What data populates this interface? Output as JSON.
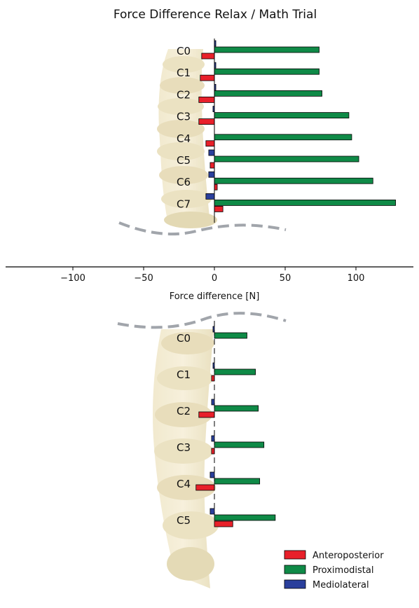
{
  "chart_data": {
    "type": "bar",
    "orientation": "horizontal",
    "title": "Force Difference Relax / Math Trial",
    "xlabel": "Force difference [N]",
    "xticks": [
      -100,
      -50,
      0,
      50,
      100
    ],
    "xlim": [
      -150,
      140
    ],
    "legend": {
      "placement": "bottom-right",
      "entries": [
        "Anteroposterior",
        "Proximodistal",
        "Mediolateral"
      ]
    },
    "colors": {
      "Anteroposterior": "#e8202a",
      "Proximodistal": "#0f8a47",
      "Mediolateral": "#2a3f9c"
    },
    "panels": [
      {
        "name": "upper",
        "categories": [
          "C0",
          "C1",
          "C2",
          "C3",
          "C4",
          "C5",
          "C6",
          "C7"
        ],
        "series": [
          {
            "name": "Anteroposterior",
            "values": [
              -9,
              -10,
              -11,
              -11,
              -6,
              -3,
              2,
              6
            ]
          },
          {
            "name": "Proximodistal",
            "values": [
              74,
              74,
              76,
              95,
              97,
              102,
              112,
              128
            ]
          },
          {
            "name": "Mediolateral",
            "values": [
              1,
              1,
              1,
              -1,
              0,
              -4,
              -4,
              -6
            ]
          }
        ]
      },
      {
        "name": "lower",
        "categories": [
          "C0",
          "C1",
          "C2",
          "C3",
          "C4",
          "C5"
        ],
        "series": [
          {
            "name": "Anteroposterior",
            "values": [
              0,
              -2,
              -11,
              -2,
              -13,
              13
            ]
          },
          {
            "name": "Proximodistal",
            "values": [
              23,
              29,
              31,
              35,
              32,
              43
            ]
          },
          {
            "name": "Mediolateral",
            "values": [
              -1,
              -1,
              -2,
              -2,
              -3,
              -3
            ]
          }
        ]
      }
    ]
  }
}
